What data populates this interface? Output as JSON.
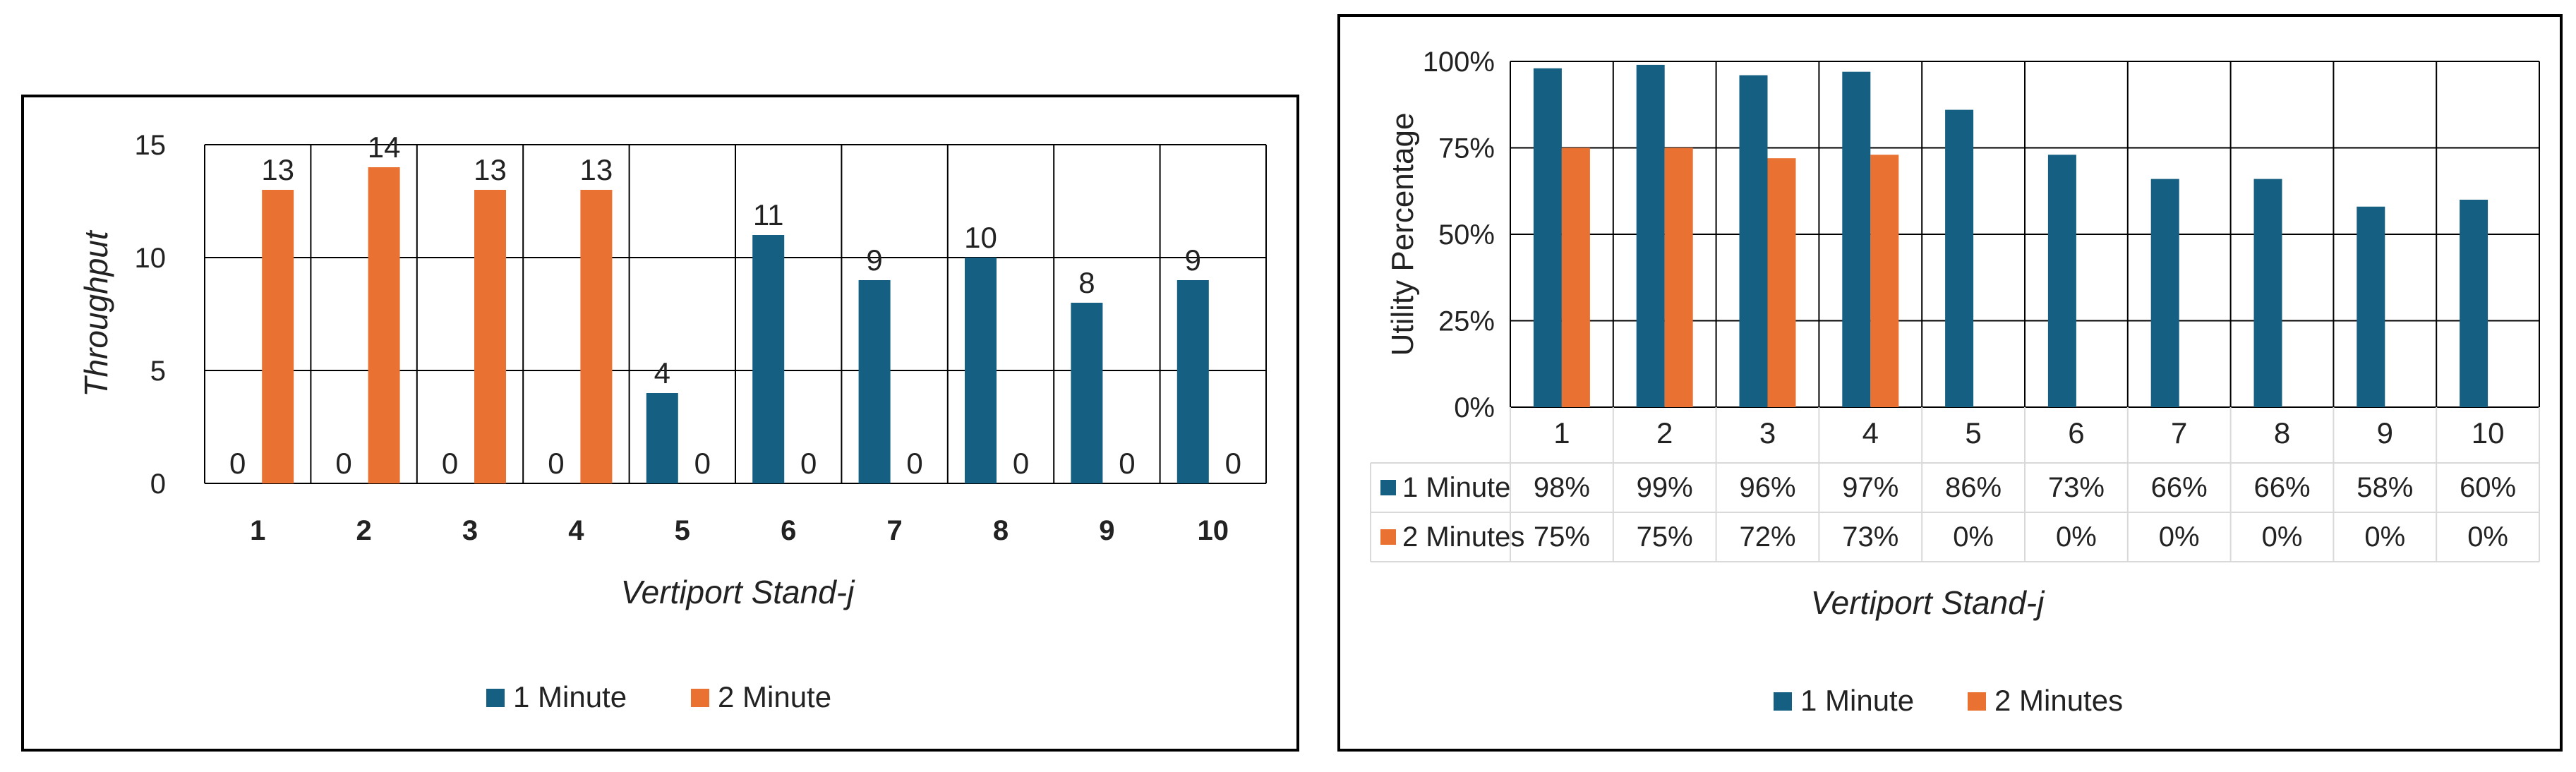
{
  "colors": {
    "series1": "#156082",
    "series2": "#E97132",
    "grid": "#000000",
    "table_border": "#d9d9d9"
  },
  "chart_data": [
    {
      "type": "bar",
      "title": "",
      "xlabel": "Vertiport Stand-j",
      "ylabel": "Throughput",
      "categories": [
        "1",
        "2",
        "3",
        "4",
        "5",
        "6",
        "7",
        "8",
        "9",
        "10"
      ],
      "series": [
        {
          "name": "1 Minute",
          "values": [
            0,
            0,
            0,
            0,
            4,
            11,
            9,
            10,
            8,
            9
          ]
        },
        {
          "name": "2 Minute",
          "values": [
            13,
            14,
            13,
            13,
            0,
            0,
            0,
            0,
            0,
            0
          ]
        }
      ],
      "ylim": [
        0,
        15
      ],
      "yticks": [
        "0",
        "5",
        "10",
        "15"
      ],
      "grid": true,
      "legend": "bottom"
    },
    {
      "type": "bar",
      "title": "",
      "xlabel": "Vertiport Stand-j",
      "ylabel": "Utility Percentage",
      "categories": [
        "1",
        "2",
        "3",
        "4",
        "5",
        "6",
        "7",
        "8",
        "9",
        "10"
      ],
      "series": [
        {
          "name": "1 Minute",
          "values": [
            98,
            99,
            96,
            97,
            86,
            73,
            66,
            66,
            58,
            60
          ],
          "labels": [
            "98%",
            "99%",
            "96%",
            "97%",
            "86%",
            "73%",
            "66%",
            "66%",
            "58%",
            "60%"
          ]
        },
        {
          "name": "2 Minutes",
          "values": [
            75,
            75,
            72,
            73,
            0,
            0,
            0,
            0,
            0,
            0
          ],
          "labels": [
            "75%",
            "75%",
            "72%",
            "73%",
            "0%",
            "0%",
            "0%",
            "0%",
            "0%",
            "0%"
          ]
        }
      ],
      "ylim": [
        0,
        100
      ],
      "yticks": [
        "0%",
        "25%",
        "50%",
        "75%",
        "100%"
      ],
      "grid": true,
      "legend": "bottom",
      "data_table": true
    }
  ]
}
